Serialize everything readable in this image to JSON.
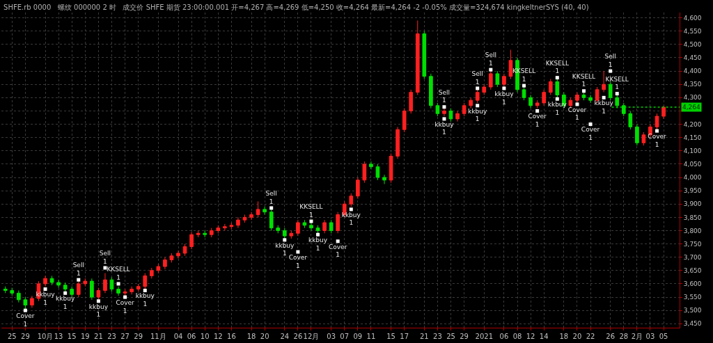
{
  "chart_data": {
    "type": "candlestick",
    "title": "SHFE.rb 0000   螺纹 000000 2 时   成交价 SHFE 期货 23:00:00.001 开=4,267 高=4,269 低=4,250 收=4,264 最新=4,264 -2 -0.05% 成交量=324,674 kingkeltnerSYS (40, 40)",
    "categories": [
      null,
      "25",
      null,
      "29",
      null,
      null,
      "10月",
      null,
      "13",
      null,
      "15",
      null,
      "19",
      null,
      "21",
      null,
      "23",
      null,
      "27",
      null,
      "29",
      null,
      null,
      "11月",
      null,
      null,
      "04",
      null,
      "06",
      null,
      "10",
      null,
      "12",
      null,
      "16",
      null,
      null,
      "18",
      null,
      "20",
      null,
      null,
      "24",
      null,
      "26",
      null,
      "12月",
      null,
      null,
      "03",
      null,
      "07",
      null,
      "09",
      null,
      "11",
      null,
      null,
      "15",
      null,
      "17",
      null,
      null,
      "21",
      null,
      "23",
      null,
      "25",
      null,
      "29",
      null,
      null,
      "2021",
      null,
      null,
      "06",
      null,
      "08",
      null,
      "12",
      null,
      "14",
      null,
      null,
      "18",
      null,
      "20",
      null,
      "22",
      null,
      null,
      "26",
      null,
      "28",
      null,
      "2月",
      null,
      "03",
      null,
      "05"
    ],
    "ohlc": [
      [
        3580,
        3590,
        3565,
        3575
      ],
      [
        3575,
        3585,
        3555,
        3565
      ],
      [
        3565,
        3575,
        3530,
        3540
      ],
      [
        3540,
        3550,
        3505,
        3520
      ],
      [
        3520,
        3555,
        3510,
        3545
      ],
      [
        3545,
        3610,
        3535,
        3600
      ],
      [
        3600,
        3630,
        3590,
        3620
      ],
      [
        3620,
        3630,
        3595,
        3605
      ],
      [
        3605,
        3615,
        3585,
        3595
      ],
      [
        3595,
        3605,
        3570,
        3580
      ],
      [
        3580,
        3590,
        3550,
        3560
      ],
      [
        3560,
        3610,
        3550,
        3600
      ],
      [
        3600,
        3620,
        3590,
        3610
      ],
      [
        3610,
        3620,
        3540,
        3550
      ],
      [
        3550,
        3585,
        3540,
        3575
      ],
      [
        3575,
        3640,
        3565,
        3615
      ],
      [
        3615,
        3625,
        3570,
        3580
      ],
      [
        3580,
        3590,
        3555,
        3565
      ],
      [
        3565,
        3580,
        3555,
        3570
      ],
      [
        3570,
        3590,
        3560,
        3580
      ],
      [
        3580,
        3600,
        3570,
        3590
      ],
      [
        3590,
        3640,
        3580,
        3630
      ],
      [
        3630,
        3660,
        3620,
        3650
      ],
      [
        3650,
        3675,
        3640,
        3665
      ],
      [
        3665,
        3700,
        3655,
        3690
      ],
      [
        3690,
        3715,
        3680,
        3705
      ],
      [
        3705,
        3725,
        3695,
        3715
      ],
      [
        3715,
        3750,
        3705,
        3740
      ],
      [
        3740,
        3795,
        3730,
        3785
      ],
      [
        3785,
        3800,
        3775,
        3790
      ],
      [
        3790,
        3800,
        3775,
        3785
      ],
      [
        3785,
        3810,
        3775,
        3800
      ],
      [
        3800,
        3820,
        3790,
        3810
      ],
      [
        3810,
        3825,
        3800,
        3815
      ],
      [
        3815,
        3830,
        3805,
        3820
      ],
      [
        3820,
        3850,
        3810,
        3840
      ],
      [
        3840,
        3860,
        3830,
        3850
      ],
      [
        3850,
        3870,
        3840,
        3860
      ],
      [
        3860,
        3910,
        3850,
        3880
      ],
      [
        3880,
        3890,
        3860,
        3870
      ],
      [
        3870,
        3880,
        3800,
        3810
      ],
      [
        3810,
        3820,
        3790,
        3800
      ],
      [
        3800,
        3810,
        3770,
        3780
      ],
      [
        3780,
        3800,
        3770,
        3790
      ],
      [
        3790,
        3840,
        3780,
        3830
      ],
      [
        3830,
        3840,
        3810,
        3820
      ],
      [
        3820,
        3830,
        3800,
        3810
      ],
      [
        3810,
        3820,
        3790,
        3800
      ],
      [
        3800,
        3840,
        3790,
        3830
      ],
      [
        3830,
        3840,
        3790,
        3800
      ],
      [
        3800,
        3870,
        3790,
        3860
      ],
      [
        3860,
        3910,
        3850,
        3900
      ],
      [
        3900,
        3940,
        3890,
        3930
      ],
      [
        3930,
        4000,
        3920,
        3990
      ],
      [
        3990,
        4060,
        3980,
        4050
      ],
      [
        4050,
        4060,
        4030,
        4040
      ],
      [
        4040,
        4050,
        3990,
        4000
      ],
      [
        4000,
        4010,
        3975,
        3990
      ],
      [
        3990,
        4090,
        3980,
        4080
      ],
      [
        4080,
        4190,
        4070,
        4180
      ],
      [
        4180,
        4260,
        4170,
        4250
      ],
      [
        4250,
        4330,
        4240,
        4320
      ],
      [
        4320,
        4590,
        4310,
        4540
      ],
      [
        4540,
        4550,
        4370,
        4380
      ],
      [
        4380,
        4390,
        4260,
        4270
      ],
      [
        4270,
        4280,
        4230,
        4240
      ],
      [
        4240,
        4260,
        4230,
        4250
      ],
      [
        4250,
        4260,
        4210,
        4220
      ],
      [
        4220,
        4250,
        4210,
        4240
      ],
      [
        4240,
        4280,
        4230,
        4270
      ],
      [
        4270,
        4300,
        4260,
        4290
      ],
      [
        4290,
        4330,
        4280,
        4320
      ],
      [
        4320,
        4350,
        4310,
        4340
      ],
      [
        4340,
        4400,
        4330,
        4390
      ],
      [
        4390,
        4400,
        4340,
        4350
      ],
      [
        4350,
        4390,
        4340,
        4380
      ],
      [
        4380,
        4480,
        4370,
        4440
      ],
      [
        4440,
        4450,
        4320,
        4330
      ],
      [
        4330,
        4340,
        4290,
        4300
      ],
      [
        4300,
        4310,
        4260,
        4270
      ],
      [
        4270,
        4290,
        4260,
        4280
      ],
      [
        4280,
        4330,
        4270,
        4320
      ],
      [
        4320,
        4370,
        4310,
        4360
      ],
      [
        4360,
        4370,
        4300,
        4310
      ],
      [
        4310,
        4320,
        4260,
        4270
      ],
      [
        4270,
        4300,
        4260,
        4290
      ],
      [
        4290,
        4320,
        4280,
        4310
      ],
      [
        4310,
        4320,
        4290,
        4300
      ],
      [
        4300,
        4310,
        4280,
        4290
      ],
      [
        4290,
        4340,
        4280,
        4330
      ],
      [
        4330,
        4400,
        4320,
        4350
      ],
      [
        4350,
        4360,
        4290,
        4300
      ],
      [
        4300,
        4310,
        4260,
        4270
      ],
      [
        4270,
        4280,
        4230,
        4240
      ],
      [
        4240,
        4250,
        4180,
        4190
      ],
      [
        4190,
        4200,
        4120,
        4130
      ],
      [
        4130,
        4170,
        4120,
        4160
      ],
      [
        4160,
        4200,
        4150,
        4190
      ],
      [
        4190,
        4240,
        4180,
        4230
      ],
      [
        4230,
        4269,
        4220,
        4264
      ]
    ],
    "colors": [
      "#00e000",
      "#00e000",
      "#00e000",
      "#00e000",
      "#ff2020",
      "#ff2020",
      "#ff2020",
      "#00e000",
      "#00e000",
      "#00e000",
      "#00e000",
      "#ff2020",
      "#ff2020",
      "#00e000",
      "#ff2020",
      "#ff2020",
      "#00e000",
      "#00e000",
      "#ff2020",
      "#ff2020",
      "#ff2020",
      "#ff2020",
      "#ff2020",
      "#ff2020",
      "#ff2020",
      "#ff2020",
      "#ff2020",
      "#ff2020",
      "#ff2020",
      "#ff2020",
      "#00e000",
      "#ff2020",
      "#ff2020",
      "#ff2020",
      "#ff2020",
      "#ff2020",
      "#ff2020",
      "#ff2020",
      "#ff2020",
      "#00e000",
      "#00e000",
      "#00e000",
      "#00e000",
      "#ff2020",
      "#ff2020",
      "#00e000",
      "#00e000",
      "#00e000",
      "#ff2020",
      "#00e000",
      "#ff2020",
      "#ff2020",
      "#ff2020",
      "#ff2020",
      "#ff2020",
      "#00e000",
      "#00e000",
      "#00e000",
      "#ff2020",
      "#ff2020",
      "#ff2020",
      "#ff2020",
      "#ff2020",
      "#00e000",
      "#00e000",
      "#00e000",
      "#ff2020",
      "#00e000",
      "#ff2020",
      "#ff2020",
      "#ff2020",
      "#ff2020",
      "#ff2020",
      "#ff2020",
      "#00e000",
      "#ff2020",
      "#ff2020",
      "#00e000",
      "#00e000",
      "#00e000",
      "#ff2020",
      "#ff2020",
      "#ff2020",
      "#00e000",
      "#00e000",
      "#ff2020",
      "#ff2020",
      "#00e000",
      "#00e000",
      "#ff2020",
      "#ff2020",
      "#00e000",
      "#00e000",
      "#00e000",
      "#00e000",
      "#00e000",
      "#ff2020",
      "#ff2020",
      "#ff2020",
      "#ff2020"
    ],
    "series": [
      {
        "type": "scatter",
        "color": "#ffffff",
        "values": [
          null,
          null,
          null,
          null,
          null,
          null,
          null,
          null,
          null,
          null,
          null,
          3615,
          null,
          null,
          null,
          3660,
          null,
          3600,
          null,
          null,
          null,
          null,
          null,
          null,
          null,
          null,
          null,
          null,
          null,
          null,
          null,
          null,
          null,
          null,
          null,
          null,
          null,
          null,
          null,
          null,
          3885,
          null,
          null,
          null,
          null,
          null,
          3835,
          null,
          null,
          null,
          null,
          null,
          null,
          null,
          null,
          null,
          null,
          null,
          null,
          null,
          null,
          null,
          null,
          null,
          null,
          null,
          4265,
          null,
          null,
          null,
          null,
          4335,
          null,
          4405,
          null,
          null,
          null,
          null,
          4345,
          null,
          null,
          null,
          null,
          4375,
          null,
          null,
          null,
          4325,
          null,
          null,
          null,
          4400,
          4315,
          null,
          null,
          null,
          null,
          null,
          null,
          null
        ],
        "value_labels": [
          null,
          null,
          null,
          null,
          null,
          null,
          null,
          null,
          null,
          null,
          null,
          "Sell\n1",
          null,
          null,
          null,
          "Sell\n1",
          null,
          "KKSELL\n1",
          null,
          null,
          null,
          null,
          null,
          null,
          null,
          null,
          null,
          null,
          null,
          null,
          null,
          null,
          null,
          null,
          null,
          null,
          null,
          null,
          null,
          null,
          "Sell\n1",
          null,
          null,
          null,
          null,
          null,
          "KKSELL\n1",
          null,
          null,
          null,
          null,
          null,
          null,
          null,
          null,
          null,
          null,
          null,
          null,
          null,
          null,
          null,
          null,
          null,
          null,
          null,
          "Sell\n1",
          null,
          null,
          null,
          null,
          "Sell\n1",
          null,
          "Sell\n1",
          null,
          null,
          null,
          null,
          "KKSELL\n1",
          null,
          null,
          null,
          null,
          "KKSELL\n1",
          null,
          null,
          null,
          "KKSELL\n1",
          null,
          null,
          null,
          "Sell\n1",
          "KKSELL\n1",
          null,
          null,
          null,
          null,
          null,
          null,
          null
        ]
      },
      {
        "type": "scatter",
        "color": "#ffffff",
        "values": [
          null,
          null,
          null,
          3500,
          null,
          null,
          3580,
          null,
          null,
          3565,
          null,
          null,
          null,
          null,
          3535,
          null,
          null,
          null,
          3550,
          null,
          null,
          3575,
          null,
          null,
          null,
          null,
          null,
          null,
          null,
          null,
          null,
          null,
          null,
          null,
          null,
          null,
          null,
          null,
          null,
          null,
          null,
          null,
          3765,
          null,
          3720,
          null,
          null,
          3785,
          null,
          null,
          3760,
          null,
          3880,
          null,
          null,
          null,
          null,
          null,
          null,
          null,
          null,
          null,
          null,
          null,
          null,
          null,
          4220,
          null,
          null,
          null,
          null,
          4270,
          null,
          null,
          null,
          4335,
          null,
          null,
          null,
          null,
          4250,
          null,
          null,
          4295,
          null,
          null,
          4275,
          null,
          4200,
          null,
          4300,
          null,
          null,
          null,
          null,
          null,
          null,
          null,
          4175,
          null
        ],
        "value_labels": [
          null,
          null,
          null,
          "Cover\n1",
          null,
          null,
          "kkbuy\n1",
          null,
          null,
          "kkbuy\n1",
          null,
          null,
          null,
          null,
          "kkbuy\n1",
          null,
          null,
          null,
          "Cover\n1",
          null,
          null,
          "kkbuy\n1",
          null,
          null,
          null,
          null,
          null,
          null,
          null,
          null,
          null,
          null,
          null,
          null,
          null,
          null,
          null,
          null,
          null,
          null,
          null,
          null,
          "kkbuy\n1",
          null,
          "Cover\n1",
          null,
          null,
          "kkbuy\n1",
          null,
          null,
          "Cover\n1",
          null,
          "kkbuy\n1",
          null,
          null,
          null,
          null,
          null,
          null,
          null,
          null,
          null,
          null,
          null,
          null,
          null,
          "kkbuy\n1",
          null,
          null,
          null,
          null,
          "kkbuy\n1",
          null,
          null,
          null,
          "kkbuy\n1",
          null,
          null,
          null,
          null,
          "Cover\n1",
          null,
          null,
          "kkbuy\n1",
          null,
          null,
          "Cover\n1",
          null,
          "Cover\n1",
          null,
          "kkbuy\n1",
          null,
          null,
          null,
          null,
          null,
          null,
          null,
          "Cover\n1",
          null
        ]
      }
    ],
    "marker": "square",
    "ylim": [
      3435,
      4620
    ],
    "yticks": [
      {
        "value": 3450,
        "label": "3,450"
      },
      {
        "value": 3500,
        "label": "3,500"
      },
      {
        "value": 3550,
        "label": "3,550"
      },
      {
        "value": 3600,
        "label": "3,600"
      },
      {
        "value": 3650,
        "label": "3,650"
      },
      {
        "value": 3700,
        "label": "3,700"
      },
      {
        "value": 3750,
        "label": "3,750"
      },
      {
        "value": 3800,
        "label": "3,800"
      },
      {
        "value": 3850,
        "label": "3,850"
      },
      {
        "value": 3900,
        "label": "3,900"
      },
      {
        "value": 3950,
        "label": "3,950"
      },
      {
        "value": 4000,
        "label": "4,000"
      },
      {
        "value": 4050,
        "label": "4,050"
      },
      {
        "value": 4100,
        "label": "4,100"
      },
      {
        "value": 4150,
        "label": "4,150"
      },
      {
        "value": 4200,
        "label": "4,200"
      },
      {
        "value": 4250,
        "label": null
      },
      {
        "value": 4300,
        "label": "4,300"
      },
      {
        "value": 4350,
        "label": "4,350"
      },
      {
        "value": 4400,
        "label": "4,400"
      },
      {
        "value": 4450,
        "label": "4,450"
      },
      {
        "value": 4500,
        "label": "4,500"
      },
      {
        "value": 4550,
        "label": "4,550"
      },
      {
        "value": 4600,
        "label": "4,600"
      }
    ],
    "grid": true,
    "ref_lines": [
      {
        "axis": "y",
        "value": 4264,
        "label": "4,264",
        "color": "#00d000",
        "line_style": "dotted"
      }
    ]
  }
}
